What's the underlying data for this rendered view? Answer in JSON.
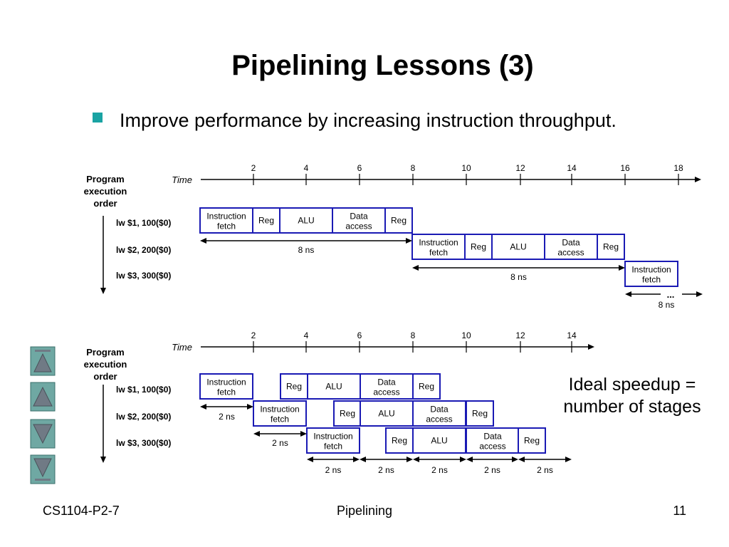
{
  "slide": {
    "title": "Pipelining Lessons (3)",
    "bullet": "Improve performance by increasing instruction throughput.",
    "speedup": "Ideal speedup = number of stages",
    "footer_left": "CS1104-P2-7",
    "footer_center": "Pipelining",
    "footer_right": "11"
  },
  "top_diagram": {
    "axis_label": "Time",
    "ticks": [
      "2",
      "4",
      "6",
      "8",
      "10",
      "12",
      "14",
      "16",
      "18"
    ],
    "order_label": [
      "Program",
      "execution",
      "order"
    ],
    "instructions": [
      "lw $1, 100($0)",
      "lw $2, 200($0)",
      "lw $3, 300($0)"
    ],
    "stages": [
      "Instruction fetch",
      "Reg",
      "ALU",
      "Data access",
      "Reg"
    ],
    "intervals": [
      "8 ns",
      "8 ns",
      "8 ns"
    ],
    "ellipsis": "..."
  },
  "bottom_diagram": {
    "axis_label": "Time",
    "ticks": [
      "2",
      "4",
      "6",
      "8",
      "10",
      "12",
      "14"
    ],
    "order_label": [
      "Program",
      "execution",
      "order"
    ],
    "instructions": [
      "lw $1, 100($0)",
      "lw $2, 200($0)",
      "lw $3, 300($0)"
    ],
    "stages": [
      "Instruction fetch",
      "Reg",
      "ALU",
      "Data access",
      "Reg"
    ],
    "intervals": [
      "2 ns",
      "2 ns"
    ],
    "bottom_intervals": [
      "2 ns",
      "2 ns",
      "2 ns",
      "2 ns",
      "2 ns"
    ]
  },
  "colors": {
    "box_border": "#1a1ab4",
    "bullet": "#1aa3a3",
    "nav_fill": "#6fa8a3",
    "nav_arrow": "#707a85"
  },
  "nav": [
    "first-slide",
    "previous-slide",
    "next-slide",
    "last-slide"
  ]
}
